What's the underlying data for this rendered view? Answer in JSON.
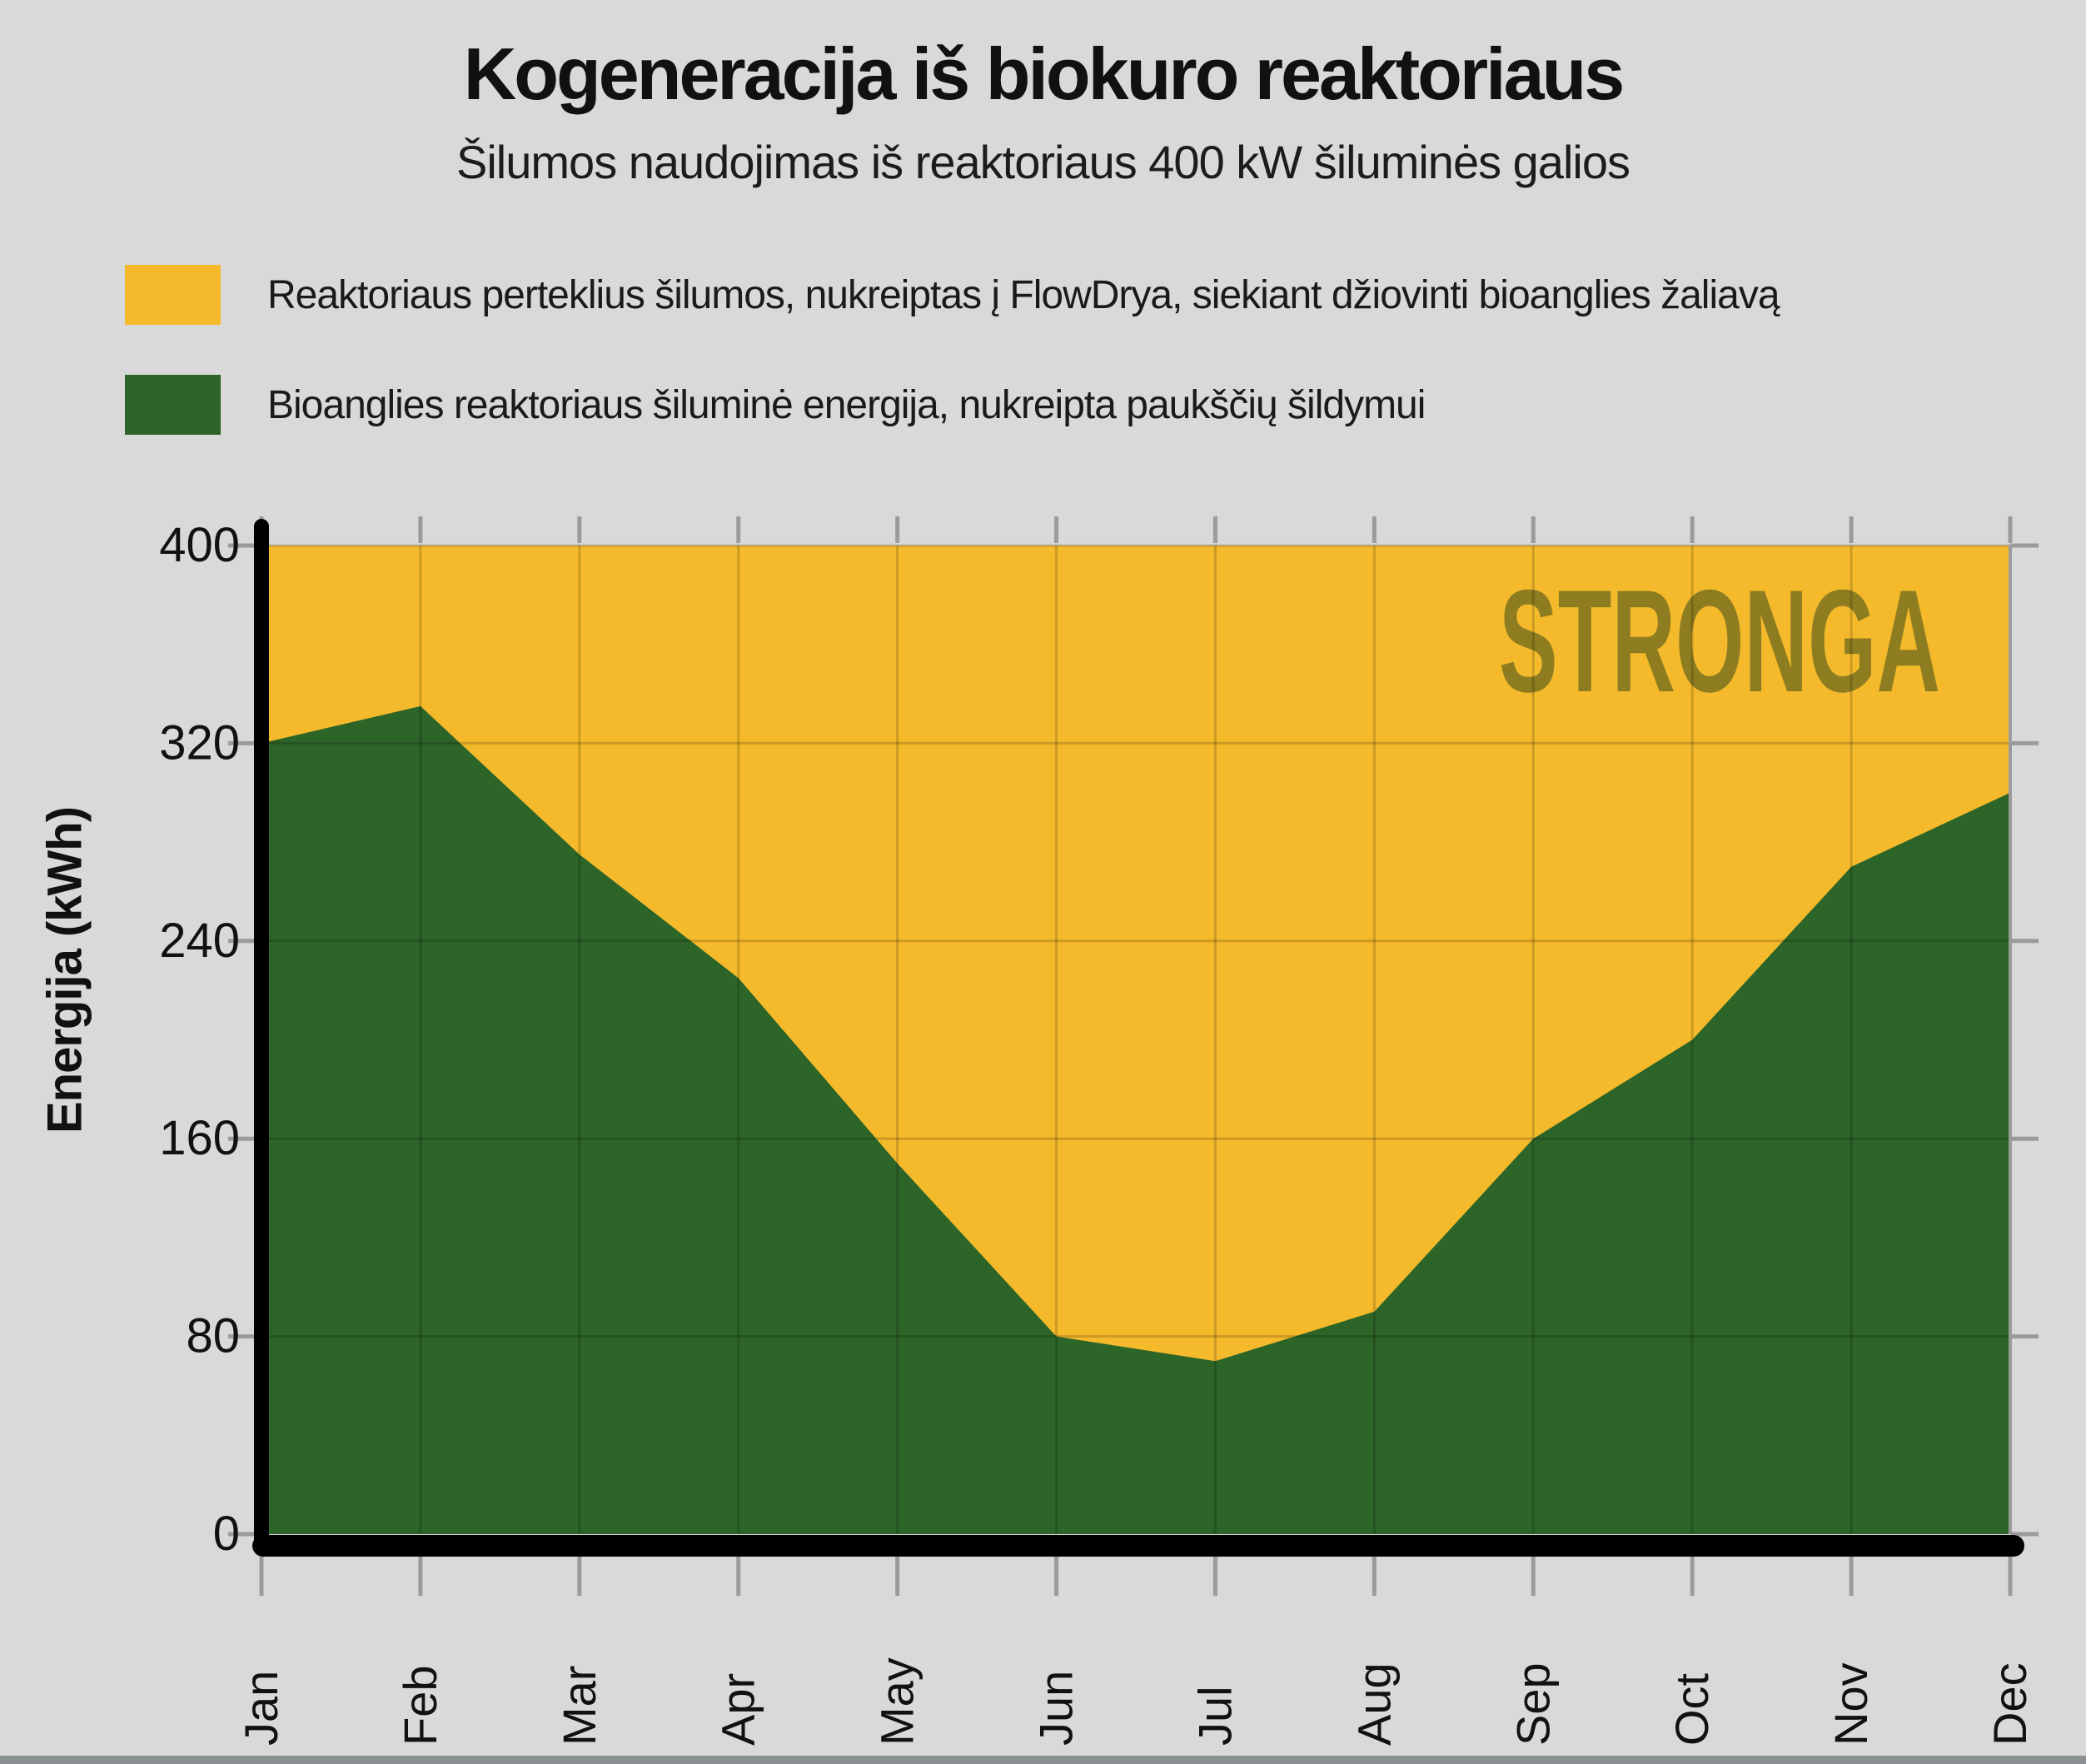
{
  "header": {
    "title": "Kogeneracija iš biokuro reaktoriaus",
    "subtitle": "Šilumos naudojimas iš reaktoriaus 400 kW šiluminės galios"
  },
  "legend": [
    {
      "label": "Reaktoriaus perteklius šilumos, nukreiptas į FlowDrya, siekiant džiovinti bioanglies žaliavą",
      "color": "#f5ba2b"
    },
    {
      "label": "Bioanglies reaktoriaus šiluminė energija, nukreipta paukščių šildymui",
      "color": "#2d6428"
    }
  ],
  "watermark": "STRONGA",
  "axes": {
    "y_label": "Energija (kWh)",
    "y_ticks": [
      0,
      80,
      160,
      240,
      320,
      400
    ],
    "x_ticks": [
      "Jan",
      "Feb",
      "Mar",
      "Apr",
      "May",
      "Jun",
      "Jul",
      "Aug",
      "Sep",
      "Oct",
      "Nov",
      "Dec"
    ]
  },
  "colors": {
    "background": "#d9d9d9",
    "area_yellow": "#f5ba2b",
    "area_green": "#2d6428",
    "watermark": "#8d7d20",
    "gridline_overlay": "rgba(0,0,0,0.17)",
    "outer_tick": "#9b9b9b",
    "spine_black": "#000000",
    "right_spine": "#9b9b9b",
    "tick_text": "#111111"
  },
  "chart_data": {
    "type": "area",
    "stacked": true,
    "title": "Kogeneracija iš biokuro reaktoriaus",
    "subtitle": "Šilumos naudojimas iš reaktoriaus 400 kW šiluminės galios",
    "xlabel": "",
    "ylabel": "Energija (kWh)",
    "ylim": [
      0,
      400
    ],
    "yticks": [
      0,
      80,
      160,
      240,
      320,
      400
    ],
    "total_constant": 400,
    "grid": true,
    "legend_position": "top-left",
    "categories": [
      "Jan",
      "Feb",
      "Mar",
      "Apr",
      "May",
      "Jun",
      "Jul",
      "Aug",
      "Sep",
      "Oct",
      "Nov",
      "Dec"
    ],
    "series": [
      {
        "name": "Reaktoriaus perteklius šilumos, nukreiptas į FlowDrya, siekiant džiovinti bioanglies žaliavą",
        "color": "#f5ba2b",
        "stack_role": "remainder_to_total",
        "values": [
          80,
          65,
          125,
          175,
          250,
          320,
          330,
          310,
          240,
          200,
          130,
          100
        ]
      },
      {
        "name": "Bioanglies reaktoriaus šiluminė energija, nukreipta paukščių šildymui",
        "color": "#2d6428",
        "stack_role": "base",
        "values": [
          320,
          335,
          275,
          225,
          150,
          80,
          70,
          90,
          160,
          200,
          270,
          300
        ]
      }
    ],
    "watermark": "STRONGA"
  }
}
